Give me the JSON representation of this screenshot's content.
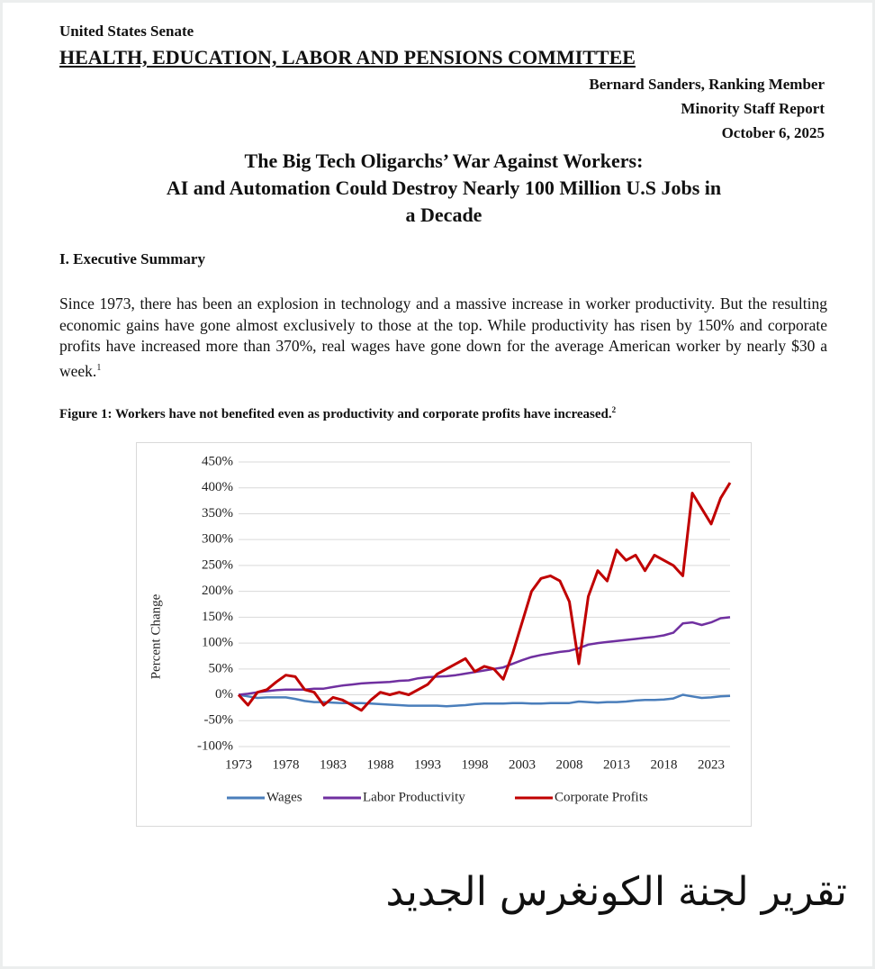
{
  "header": {
    "org": "United States Senate",
    "committee": "HEALTH, EDUCATION, LABOR AND PENSIONS COMMITTEE",
    "lines": [
      "Bernard Sanders, Ranking Member",
      "Minority Staff Report",
      "October 6, 2025"
    ]
  },
  "title": [
    "The Big Tech Oligarchs’ War Against Workers:",
    "AI and Automation Could Destroy Nearly 100 Million U.S Jobs in a Decade"
  ],
  "section": "I. Executive Summary",
  "paragraph": {
    "text": "Since 1973, there has been an explosion in technology and a massive increase in worker productivity. But the resulting economic gains have gone almost exclusively to those at the top. While productivity has risen by 150% and corporate profits have increased more than 370%, real wages have gone down for the average American worker by nearly $30 a week.",
    "note": "1"
  },
  "figure": {
    "label": "Figure 1",
    "caption": ": Workers have not benefited even as productivity and corporate profits have increased.",
    "note": "2"
  },
  "chart_data": {
    "type": "line",
    "y_label": "Percent Change",
    "x": [
      1973,
      1974,
      1975,
      1976,
      1977,
      1978,
      1979,
      1980,
      1981,
      1982,
      1983,
      1984,
      1985,
      1986,
      1987,
      1988,
      1989,
      1990,
      1991,
      1992,
      1993,
      1994,
      1995,
      1996,
      1997,
      1998,
      1999,
      2000,
      2001,
      2002,
      2003,
      2004,
      2005,
      2006,
      2007,
      2008,
      2009,
      2010,
      2011,
      2012,
      2013,
      2014,
      2015,
      2016,
      2017,
      2018,
      2019,
      2020,
      2021,
      2022,
      2023,
      2024,
      2025
    ],
    "xlim": [
      1973,
      2025
    ],
    "xticks": [
      1973,
      1978,
      1983,
      1988,
      1993,
      1998,
      2003,
      2008,
      2013,
      2018,
      2023
    ],
    "ylim": [
      -100,
      450
    ],
    "yticks": [
      {
        "value": -100,
        "label": "-100%"
      },
      {
        "value": -50,
        "label": "-50%"
      },
      {
        "value": 0,
        "label": "0%"
      },
      {
        "value": 50,
        "label": "50%"
      },
      {
        "value": 100,
        "label": "100%"
      },
      {
        "value": 150,
        "label": "150%"
      },
      {
        "value": 200,
        "label": "200%"
      },
      {
        "value": 250,
        "label": "250%"
      },
      {
        "value": 300,
        "label": "300%"
      },
      {
        "value": 350,
        "label": "350%"
      },
      {
        "value": 400,
        "label": "400%"
      },
      {
        "value": 450,
        "label": "450%"
      }
    ],
    "grid": true,
    "legend": "bottom",
    "series": [
      {
        "name": "Wages",
        "color": "#4a7ebb",
        "values": [
          0,
          -3,
          -6,
          -5,
          -5,
          -5,
          -8,
          -12,
          -14,
          -14,
          -15,
          -16,
          -16,
          -16,
          -17,
          -18,
          -19,
          -20,
          -21,
          -21,
          -21,
          -21,
          -22,
          -21,
          -20,
          -18,
          -17,
          -17,
          -17,
          -16,
          -16,
          -17,
          -17,
          -16,
          -16,
          -16,
          -13,
          -14,
          -15,
          -14,
          -14,
          -13,
          -11,
          -10,
          -10,
          -9,
          -7,
          0,
          -3,
          -6,
          -5,
          -3,
          -2
        ]
      },
      {
        "name": "Labor Productivity",
        "color": "#7030a0",
        "values": [
          0,
          2,
          5,
          7,
          9,
          10,
          10,
          10,
          12,
          12,
          15,
          18,
          20,
          22,
          23,
          24,
          25,
          27,
          28,
          32,
          34,
          35,
          36,
          38,
          41,
          44,
          47,
          50,
          53,
          60,
          67,
          73,
          77,
          80,
          83,
          85,
          90,
          97,
          100,
          102,
          104,
          106,
          108,
          110,
          112,
          115,
          120,
          138,
          140,
          135,
          140,
          148,
          150
        ]
      },
      {
        "name": "Corporate Profits",
        "color": "#c00000",
        "values": [
          0,
          -20,
          5,
          10,
          25,
          38,
          35,
          10,
          5,
          -20,
          -5,
          -10,
          -20,
          -30,
          -10,
          5,
          0,
          5,
          0,
          10,
          20,
          40,
          50,
          60,
          70,
          45,
          55,
          50,
          30,
          80,
          140,
          200,
          225,
          230,
          220,
          180,
          60,
          190,
          240,
          220,
          280,
          260,
          270,
          240,
          270,
          260,
          250,
          230,
          390,
          360,
          330,
          380,
          410
        ]
      }
    ]
  },
  "overlay_caption": "تقرير لجنة الكونغرس الجديد"
}
